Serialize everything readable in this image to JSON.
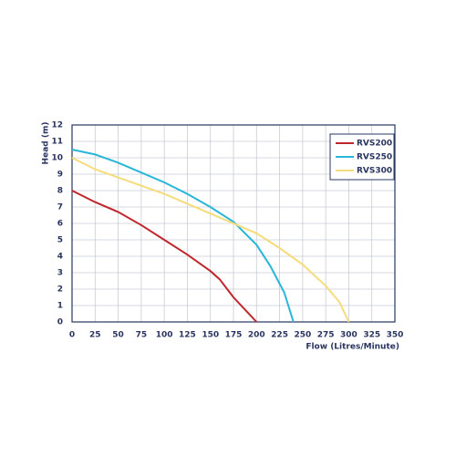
{
  "chart_data": {
    "type": "line",
    "x_label": "Flow (Litres/Minute)",
    "y_label": "Head (m)",
    "xlim": [
      0,
      350
    ],
    "xticks": [
      0,
      25,
      50,
      75,
      100,
      125,
      150,
      175,
      200,
      225,
      250,
      275,
      300,
      325,
      350
    ],
    "ylim": [
      0,
      12
    ],
    "yticks": [
      0,
      1,
      2,
      3,
      4,
      5,
      6,
      7,
      8,
      9,
      10,
      11,
      12
    ],
    "grid": true,
    "legend": "top-right",
    "series": [
      {
        "name": "RVS200",
        "color": "#c0272d",
        "x": [
          0,
          25,
          50,
          75,
          100,
          125,
          150,
          160,
          175,
          190,
          200
        ],
        "values": [
          8,
          7.3,
          6.7,
          5.9,
          5.0,
          4.1,
          3.1,
          2.6,
          1.5,
          0.6,
          0
        ]
      },
      {
        "name": "RVS250",
        "color": "#29b6d8",
        "x": [
          0,
          25,
          50,
          75,
          100,
          125,
          150,
          175,
          200,
          215,
          230,
          240
        ],
        "values": [
          10.5,
          10.2,
          9.7,
          9.1,
          8.5,
          7.8,
          7.0,
          6.1,
          4.7,
          3.4,
          1.8,
          0
        ]
      },
      {
        "name": "RVS300",
        "color": "#f5dc7a",
        "x": [
          0,
          25,
          50,
          75,
          100,
          125,
          150,
          175,
          200,
          225,
          250,
          275,
          290,
          300
        ],
        "values": [
          10,
          9.3,
          8.8,
          8.3,
          7.8,
          7.2,
          6.6,
          6.0,
          5.4,
          4.5,
          3.5,
          2.2,
          1.2,
          0
        ]
      }
    ]
  }
}
